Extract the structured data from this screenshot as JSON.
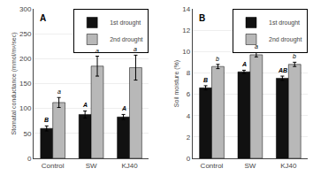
{
  "chart_data": [
    {
      "type": "bar",
      "title": "A",
      "ylabel": "Stomatal conductance (mmol/m²/sec)",
      "categories": [
        "Control",
        "SW",
        "KJ40"
      ],
      "series": [
        {
          "name": "1st drought",
          "color": "#111111",
          "values": [
            60,
            88,
            83
          ],
          "errors": [
            5,
            7,
            5
          ],
          "letters": [
            "B",
            "A",
            "A"
          ]
        },
        {
          "name": "2nd drought",
          "color": "#b8b8b8",
          "values": [
            112,
            185,
            182
          ],
          "errors": [
            10,
            20,
            25
          ],
          "letters": [
            "a",
            "a",
            "a"
          ]
        }
      ],
      "ylim": [
        0,
        300
      ],
      "yticks": [
        0,
        50,
        100,
        150,
        200,
        250,
        300
      ],
      "legend": "upper right"
    },
    {
      "type": "bar",
      "title": "B",
      "ylabel": "Soil moisture (%)",
      "categories": [
        "Control",
        "SW",
        "KJ40"
      ],
      "series": [
        {
          "name": "1st drought",
          "color": "#111111",
          "values": [
            6.6,
            8.1,
            7.5
          ],
          "errors": [
            0.2,
            0.15,
            0.2
          ],
          "letters": [
            "B",
            "A",
            "AB"
          ]
        },
        {
          "name": "2nd drought",
          "color": "#b8b8b8",
          "values": [
            8.6,
            9.7,
            8.8
          ],
          "errors": [
            0.2,
            0.2,
            0.2
          ],
          "letters": [
            "b",
            "a",
            "b"
          ]
        }
      ],
      "ylim": [
        0,
        14
      ],
      "yticks": [
        0,
        2,
        4,
        6,
        8,
        10,
        12,
        14
      ],
      "legend": "upper right"
    }
  ]
}
